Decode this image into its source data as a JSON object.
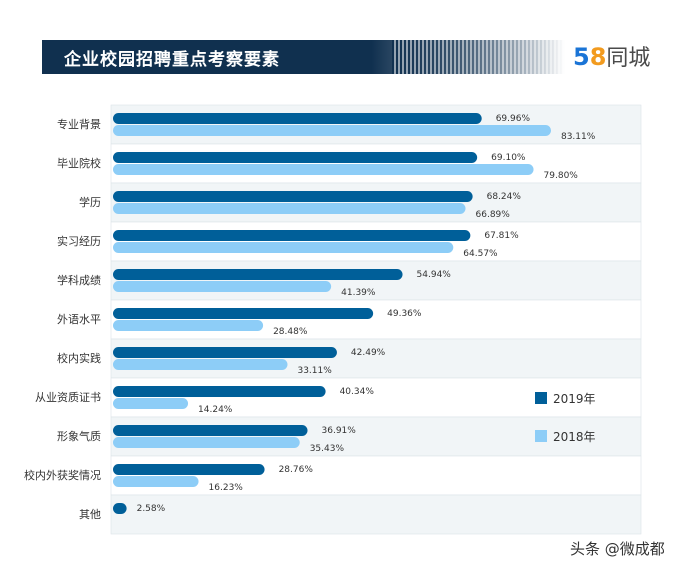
{
  "header": {
    "title": "企业校园招聘重点考察要素",
    "logo_text_num_5": "5",
    "logo_text_num_8": "8",
    "logo_text": "同城"
  },
  "watermark": "头条 @微成都",
  "chart_data": {
    "type": "bar",
    "orientation": "horizontal",
    "title": "企业校园招聘重点考察要素",
    "categories": [
      "专业背景",
      "毕业院校",
      "学历",
      "实习经历",
      "学科成绩",
      "外语水平",
      "校内实践",
      "从业资质证书",
      "形象气质",
      "校内外获奖情况",
      "其他"
    ],
    "series": [
      {
        "name": "2019年",
        "color": "#005f99",
        "values": [
          69.96,
          69.1,
          68.24,
          67.81,
          54.94,
          49.36,
          42.49,
          40.34,
          36.91,
          28.76,
          2.58
        ]
      },
      {
        "name": "2018年",
        "color": "#8dcdf7",
        "values": [
          83.11,
          79.8,
          66.89,
          64.57,
          41.39,
          28.48,
          33.11,
          14.24,
          35.43,
          16.23,
          null
        ]
      }
    ],
    "value_format": "%",
    "xlim": [
      0,
      100
    ],
    "grid": false,
    "legend": "right",
    "row_band_color": "#f1f5f7"
  }
}
